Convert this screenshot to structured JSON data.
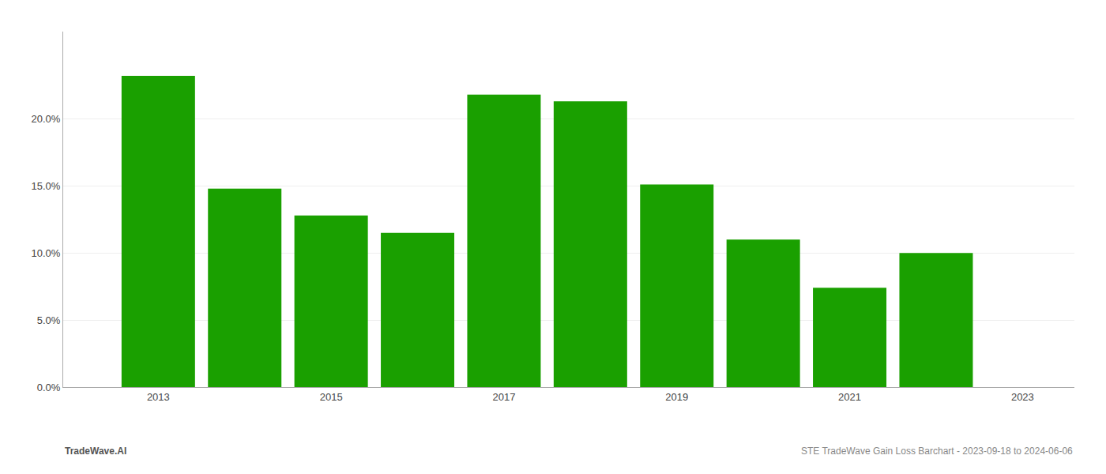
{
  "chart_data": {
    "type": "bar",
    "x": [
      2013,
      2014,
      2015,
      2016,
      2017,
      2018,
      2019,
      2020,
      2021,
      2022
    ],
    "values": [
      0.232,
      0.148,
      0.128,
      0.115,
      0.218,
      0.213,
      0.151,
      0.11,
      0.074,
      0.1
    ],
    "color": "#1aA000",
    "xlim": [
      2011.9,
      2023.6
    ],
    "xticks": [
      2013,
      2015,
      2017,
      2019,
      2021,
      2023
    ],
    "ylim": [
      0,
      0.265
    ],
    "yticks": [
      {
        "value": 0.0,
        "label": "0.0%"
      },
      {
        "value": 0.05,
        "label": "5.0%"
      },
      {
        "value": 0.1,
        "label": "10.0%"
      },
      {
        "value": 0.15,
        "label": "15.0%"
      },
      {
        "value": 0.2,
        "label": "20.0%"
      }
    ],
    "grid": true,
    "annotations": [
      "TradeWave.AI",
      "STE TradeWave Gain Loss Barchart - 2023-09-18 to 2024-06-06"
    ]
  }
}
